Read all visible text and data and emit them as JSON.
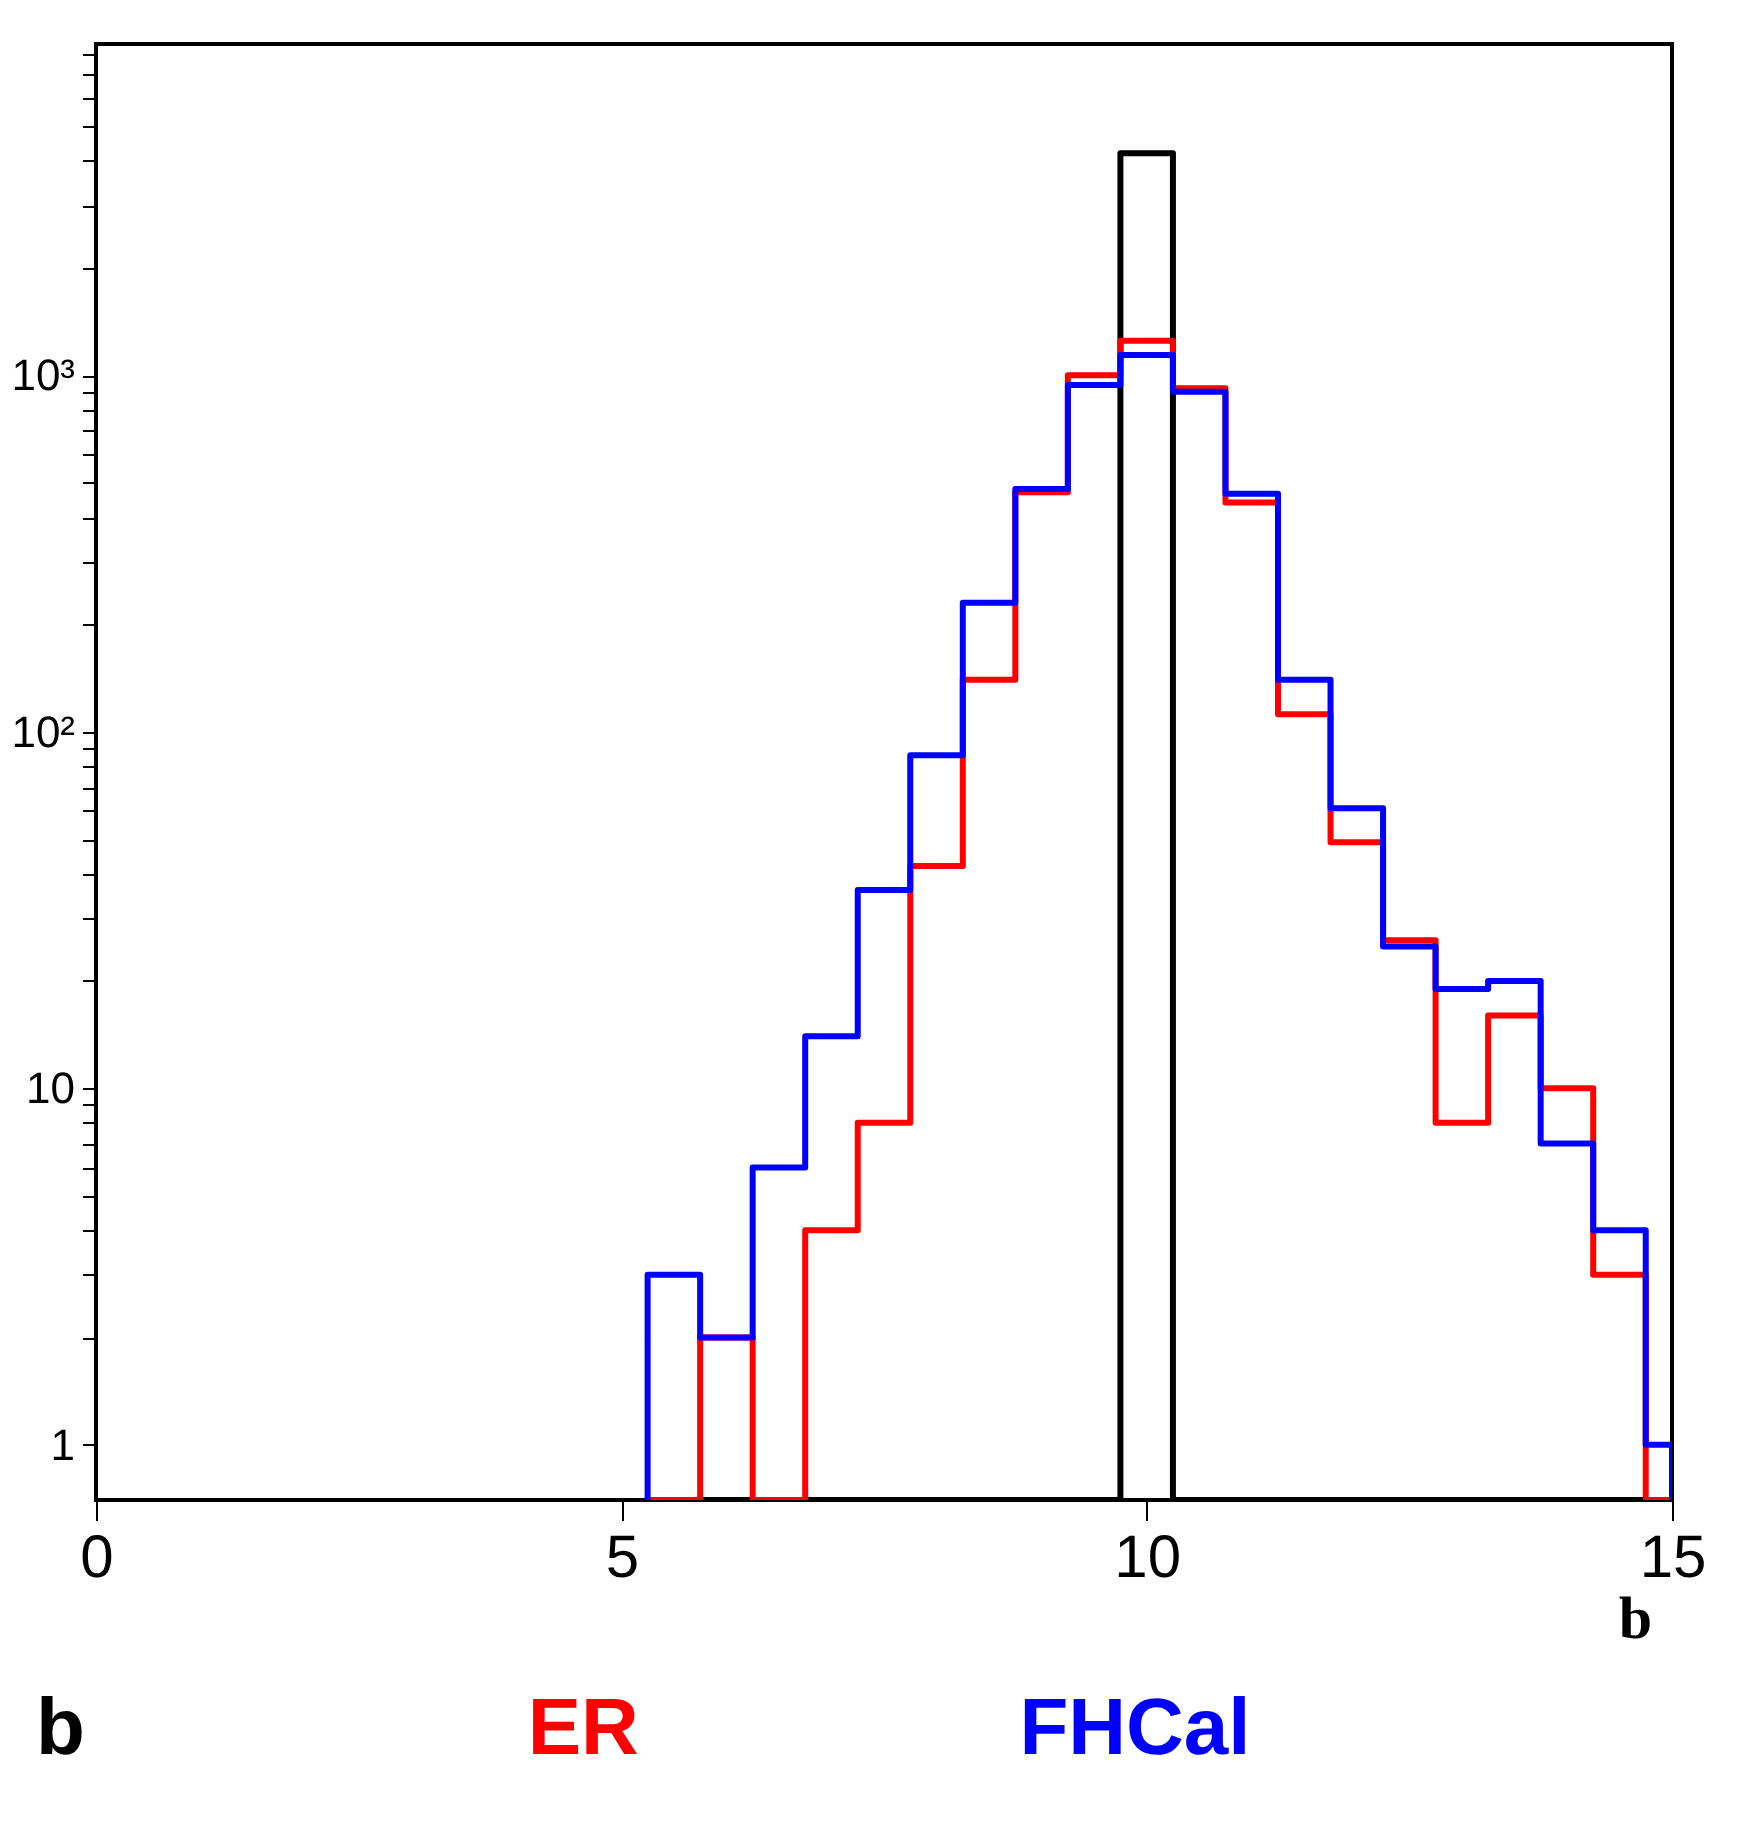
{
  "chart_data": {
    "type": "histogram",
    "xlabel": "b",
    "log": "y",
    "grid": false,
    "legend": "bottom",
    "bins": [
      5.25,
      5.75,
      6.25,
      6.75,
      7.25,
      7.75,
      8.25,
      8.75,
      9.25,
      9.75,
      10.25,
      10.75,
      11.25,
      11.75,
      12.25,
      12.75,
      13.25,
      13.75,
      14.25,
      14.75,
      15
    ],
    "series": [
      {
        "name": "b",
        "color": "#000000",
        "values": [
          null,
          null,
          null,
          null,
          null,
          null,
          null,
          null,
          null,
          4200,
          null,
          null,
          null,
          null,
          null,
          null,
          null,
          null,
          null,
          null
        ]
      },
      {
        "name": "ER",
        "color": "#ff0000",
        "values": [
          null,
          2,
          null,
          4,
          8,
          42,
          140,
          470,
          1000,
          1250,
          920,
          440,
          112,
          49,
          26,
          8,
          16,
          10,
          3,
          null
        ]
      },
      {
        "name": "FHCal",
        "color": "#0000ff",
        "values": [
          3,
          2,
          6,
          14,
          36,
          86,
          230,
          480,
          940,
          1140,
          900,
          465,
          140,
          61,
          25,
          19,
          20,
          7,
          4,
          1
        ]
      }
    ],
    "xlim": [
      0,
      15
    ],
    "xticks": [
      0,
      5,
      10,
      15
    ],
    "ylim": [
      0.7,
      8500
    ],
    "yticks": [
      1,
      {
        "value": 2,
        "label": null
      },
      {
        "value": 3,
        "label": null
      },
      {
        "value": 4,
        "label": null
      },
      {
        "value": 5,
        "label": null
      },
      {
        "value": 6,
        "label": null
      },
      {
        "value": 7,
        "label": null
      },
      {
        "value": 8,
        "label": null
      },
      {
        "value": 9,
        "label": null
      },
      10,
      {
        "value": 20,
        "label": null
      },
      {
        "value": 30,
        "label": null
      },
      {
        "value": 40,
        "label": null
      },
      {
        "value": 50,
        "label": null
      },
      {
        "value": 60,
        "label": null
      },
      {
        "value": 70,
        "label": null
      },
      {
        "value": 80,
        "label": null
      },
      {
        "value": 90,
        "label": null
      },
      {
        "value": 100,
        "label": "10²"
      },
      {
        "value": 200,
        "label": null
      },
      {
        "value": 300,
        "label": null
      },
      {
        "value": 400,
        "label": null
      },
      {
        "value": 500,
        "label": null
      },
      {
        "value": 600,
        "label": null
      },
      {
        "value": 700,
        "label": null
      },
      {
        "value": 800,
        "label": null
      },
      {
        "value": 900,
        "label": null
      },
      {
        "value": 1000,
        "label": "10³"
      },
      {
        "value": 2000,
        "label": null
      },
      {
        "value": 3000,
        "label": null
      },
      {
        "value": 4000,
        "label": null
      },
      {
        "value": 5000,
        "label": null
      },
      {
        "value": 6000,
        "label": null
      },
      {
        "value": 7000,
        "label": null
      },
      {
        "value": 8000,
        "label": null
      }
    ]
  }
}
